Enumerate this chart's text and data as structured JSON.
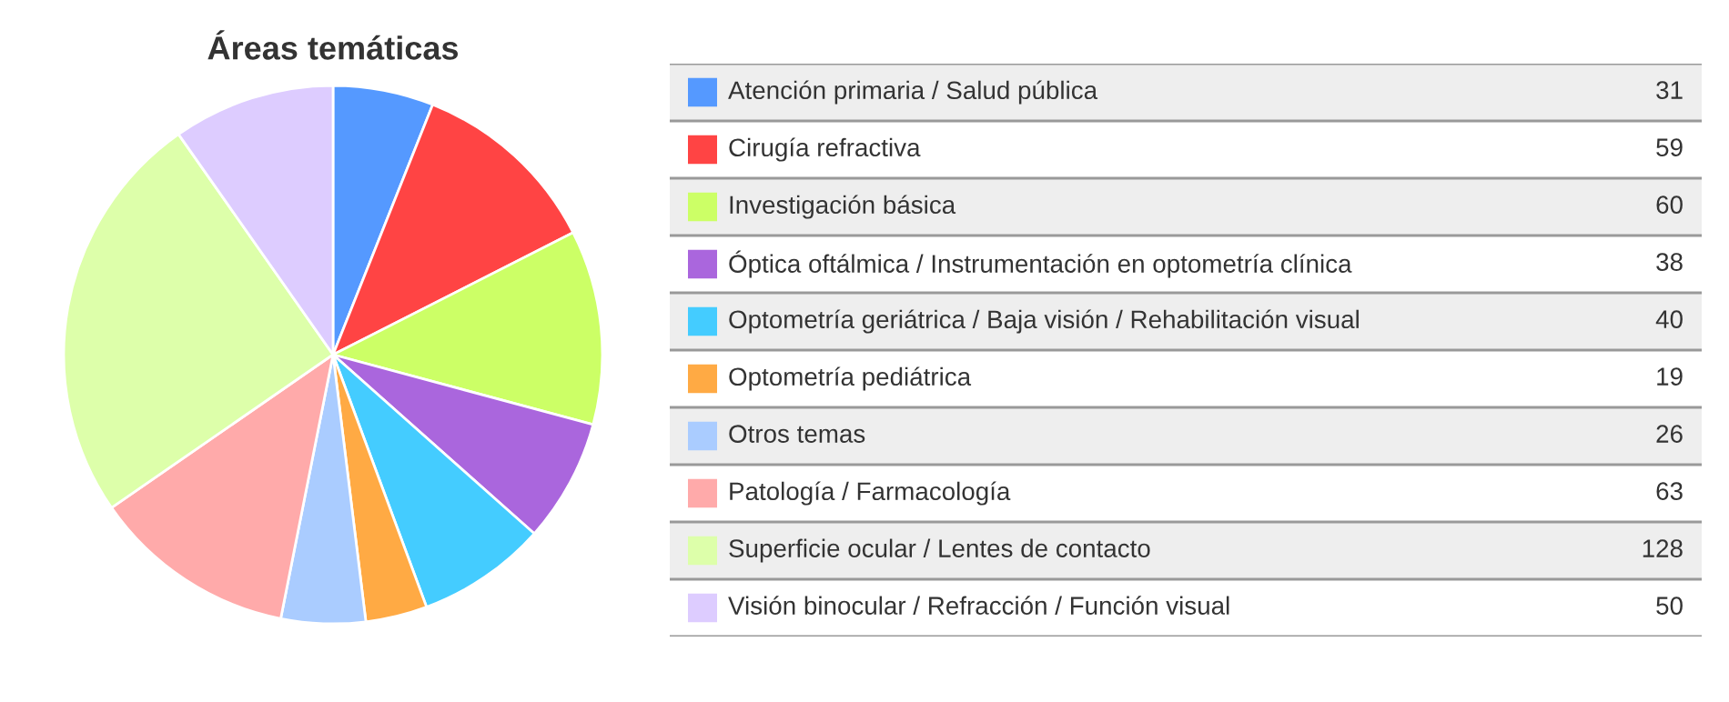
{
  "chart_data": {
    "type": "pie",
    "title": "Áreas temáticas",
    "categories": [
      "Atención primaria / Salud pública",
      "Cirugía refractiva",
      "Investigación básica",
      "Óptica oftálmica / Instrumentación en optometría clínica",
      "Optometría geriátrica / Baja visión / Rehabilitación visual",
      "Optometría pediátrica",
      "Otros temas",
      "Patología / Farmacología",
      "Superficie ocular / Lentes de contacto",
      "Visión binocular / Refracción / Función visual"
    ],
    "values": [
      31,
      59,
      60,
      38,
      40,
      19,
      26,
      63,
      128,
      50
    ],
    "colors": [
      "#5599ff",
      "#ff4444",
      "#ccff66",
      "#aa66dd",
      "#44ccff",
      "#ffaa44",
      "#aaccff",
      "#ffaaaa",
      "#ddffaa",
      "#ddccff"
    ],
    "data_labels": true,
    "legend": "right"
  }
}
